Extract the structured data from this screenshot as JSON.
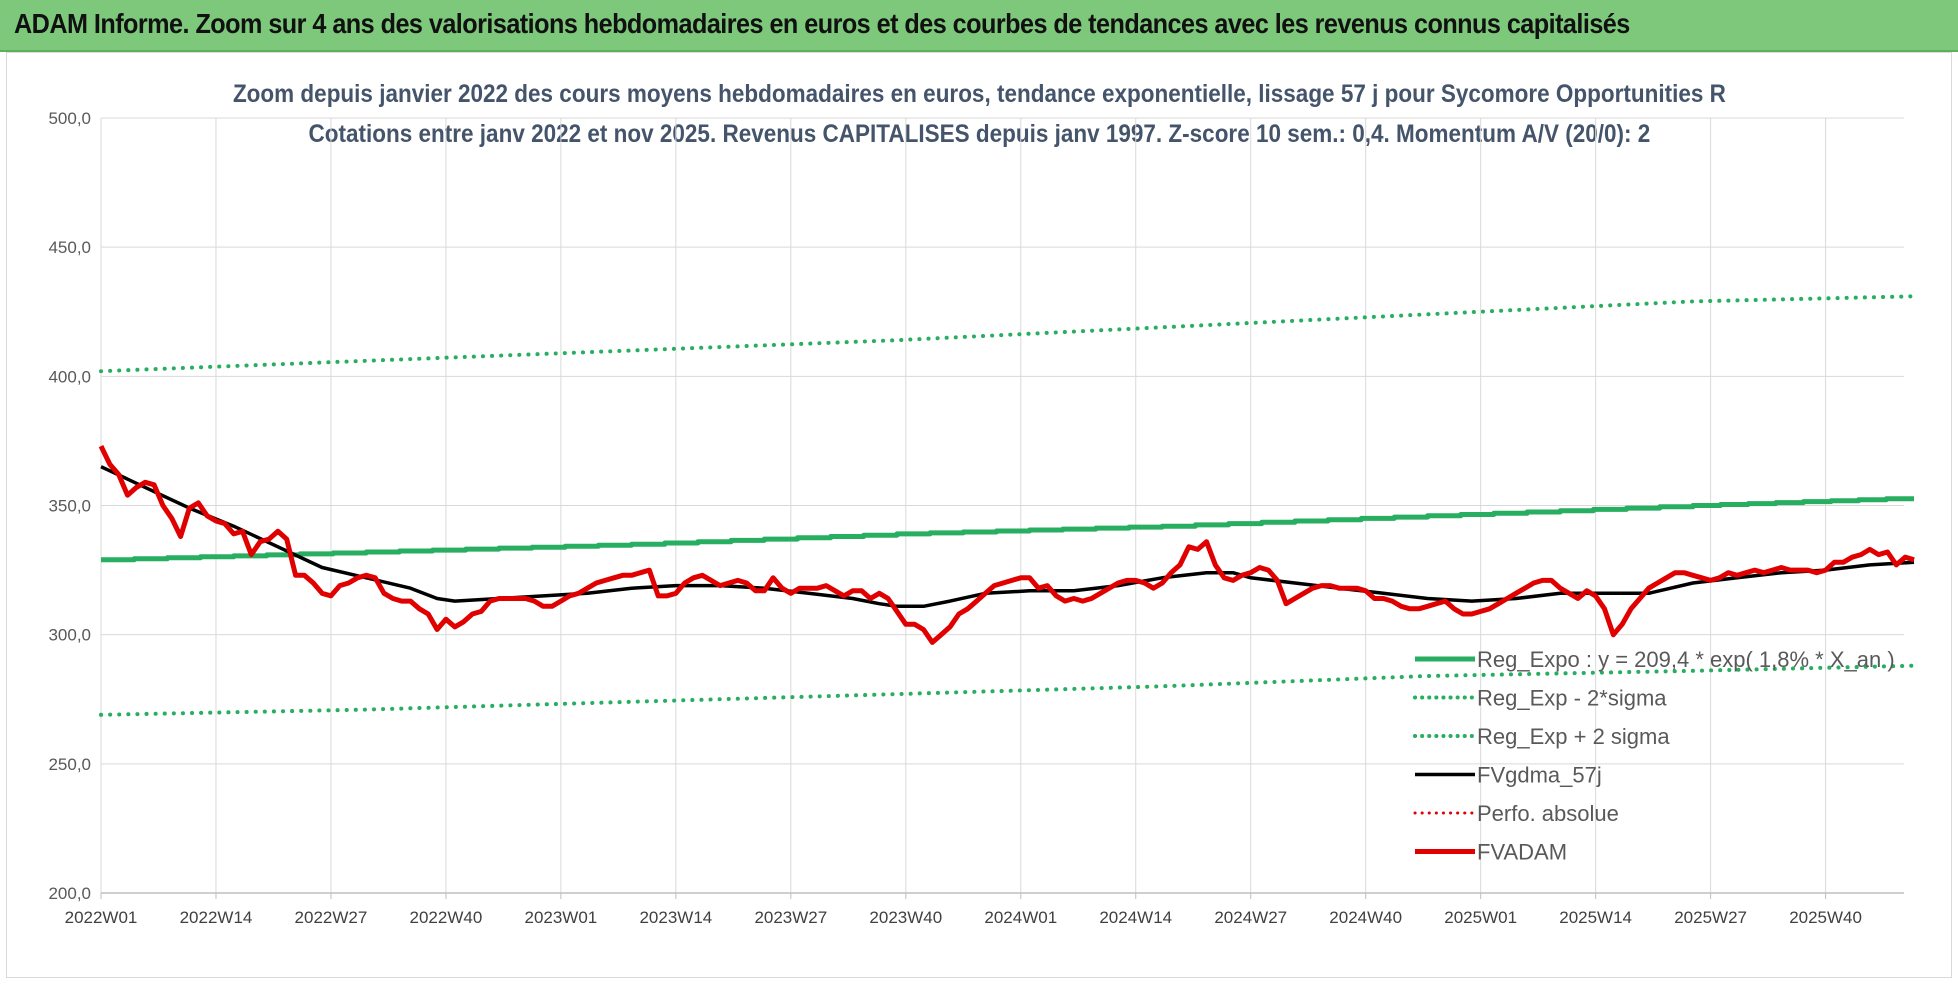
{
  "header": {
    "banner_title": "ADAM Informe. Zoom sur 4 ans des valorisations hebdomadaires en euros et des courbes de tendances avec les revenus connus capitalisés"
  },
  "chart_data": {
    "type": "line",
    "title": "Zoom depuis janvier 2022 des cours moyens hebdomadaires en euros, tendance exponentielle, lissage 57 j pour Sycomore Opportunities R",
    "subtitle": "Cotations entre janv 2022 et nov 2025. Revenus CAPITALISES depuis janv 1997. Z-score 10 sem.: 0,4. Momentum A/V (20/0): 2",
    "ylim": [
      200,
      500
    ],
    "yticks": [
      "200,0",
      "250,0",
      "300,0",
      "350,0",
      "400,0",
      "450,0",
      "500,0"
    ],
    "ytick_values": [
      200,
      250,
      300,
      350,
      400,
      450,
      500
    ],
    "xlim_weeks": [
      0,
      210
    ],
    "xticks": [
      {
        "label": "2022W01",
        "week": 0
      },
      {
        "label": "2022W14",
        "week": 13
      },
      {
        "label": "2022W27",
        "week": 26
      },
      {
        "label": "2022W40",
        "week": 39
      },
      {
        "label": "2023W01",
        "week": 52
      },
      {
        "label": "2023W14",
        "week": 65
      },
      {
        "label": "2023W27",
        "week": 78
      },
      {
        "label": "2023W40",
        "week": 91
      },
      {
        "label": "2024W01",
        "week": 104
      },
      {
        "label": "2024W14",
        "week": 117
      },
      {
        "label": "2024W27",
        "week": 130
      },
      {
        "label": "2024W40",
        "week": 143
      },
      {
        "label": "2025W01",
        "week": 156
      },
      {
        "label": "2025W14",
        "week": 169
      },
      {
        "label": "2025W27",
        "week": 182
      },
      {
        "label": "2025W40",
        "week": 195
      }
    ],
    "grid": "vertical",
    "legend_position": "bottom-right",
    "series": [
      {
        "name": "Reg_Expo : y = 209,4 * exp( 1,8% * X_an )",
        "color": "#27ae60",
        "style": "step",
        "width": 5,
        "x": [
          0,
          30,
          60,
          90,
          120,
          150,
          180,
          205
        ],
        "y": [
          329,
          332,
          335,
          339,
          342,
          346,
          350,
          353
        ]
      },
      {
        "name": "Reg_Exp - 2*sigma",
        "color": "#27ae60",
        "style": "dotted",
        "width": 4,
        "x": [
          0,
          30,
          60,
          90,
          120,
          150,
          180,
          205
        ],
        "y": [
          269,
          271,
          274,
          277,
          280,
          284,
          286,
          288
        ]
      },
      {
        "name": "Reg_Exp + 2 sigma",
        "color": "#27ae60",
        "style": "dotted",
        "width": 4,
        "x": [
          0,
          30,
          60,
          90,
          120,
          150,
          180,
          205
        ],
        "y": [
          402,
          406,
          410,
          414,
          419,
          424,
          429,
          431
        ]
      },
      {
        "name": "FVgdma_57j",
        "color": "#000000",
        "style": "solid",
        "width": 3.5,
        "x": [
          0,
          5,
          10,
          15,
          20,
          25,
          30,
          35,
          38,
          40,
          45,
          50,
          55,
          60,
          65,
          70,
          75,
          80,
          85,
          88,
          90,
          93,
          96,
          100,
          105,
          110,
          115,
          120,
          125,
          128,
          130,
          135,
          140,
          145,
          150,
          155,
          160,
          165,
          170,
          175,
          180,
          185,
          190,
          195,
          200,
          205
        ],
        "y": [
          365,
          357,
          349,
          342,
          334,
          326,
          322,
          318,
          314,
          313,
          314,
          315,
          316,
          318,
          319,
          319,
          318,
          316,
          314,
          312,
          311,
          311,
          313,
          316,
          317,
          317,
          319,
          322,
          324,
          324,
          322,
          320,
          318,
          316,
          314,
          313,
          314,
          316,
          316,
          316,
          320,
          322,
          324,
          325,
          327,
          328
        ]
      },
      {
        "name": "Perfo. absolue",
        "color": "#e00000",
        "style": "dotted",
        "width": 3,
        "x": [],
        "y": []
      },
      {
        "name": "FVADAM",
        "color": "#e00000",
        "style": "solid",
        "width": 5,
        "x": [
          0,
          1,
          2,
          3,
          4,
          5,
          6,
          7,
          8,
          9,
          10,
          11,
          12,
          13,
          14,
          15,
          16,
          17,
          18,
          19,
          20,
          21,
          22,
          23,
          24,
          25,
          26,
          27,
          28,
          29,
          30,
          31,
          32,
          33,
          34,
          35,
          36,
          37,
          38,
          39,
          40,
          41,
          42,
          43,
          44,
          45,
          46,
          47,
          48,
          49,
          50,
          51,
          52,
          53,
          54,
          55,
          56,
          57,
          58,
          59,
          60,
          61,
          62,
          63,
          64,
          65,
          66,
          67,
          68,
          69,
          70,
          71,
          72,
          73,
          74,
          75,
          76,
          77,
          78,
          79,
          80,
          81,
          82,
          83,
          84,
          85,
          86,
          87,
          88,
          89,
          90,
          91,
          92,
          93,
          94,
          95,
          96,
          97,
          98,
          99,
          100,
          101,
          102,
          103,
          104,
          105,
          106,
          107,
          108,
          109,
          110,
          111,
          112,
          113,
          114,
          115,
          116,
          117,
          118,
          119,
          120,
          121,
          122,
          123,
          124,
          125,
          126,
          127,
          128,
          129,
          130,
          131,
          132,
          133,
          134,
          135,
          136,
          137,
          138,
          139,
          140,
          141,
          142,
          143,
          144,
          145,
          146,
          147,
          148,
          149,
          150,
          151,
          152,
          153,
          154,
          155,
          156,
          157,
          158,
          159,
          160,
          161,
          162,
          163,
          164,
          165,
          166,
          167,
          168,
          169,
          170,
          171,
          172,
          173,
          174,
          175,
          176,
          177,
          178,
          179,
          180,
          181,
          182,
          183,
          184,
          185,
          186,
          187,
          188,
          189,
          190,
          191,
          192,
          193,
          194,
          195,
          196,
          197,
          198,
          199,
          200,
          201,
          202,
          203,
          204,
          205
        ],
        "y": [
          373,
          366,
          362,
          354,
          357,
          359,
          358,
          350,
          345,
          338,
          349,
          351,
          346,
          344,
          343,
          339,
          340,
          331,
          336,
          337,
          340,
          337,
          323,
          323,
          320,
          316,
          315,
          319,
          320,
          322,
          323,
          322,
          316,
          314,
          313,
          313,
          310,
          308,
          302,
          306,
          303,
          305,
          308,
          309,
          313,
          314,
          314,
          314,
          314,
          313,
          311,
          311,
          313,
          315,
          316,
          318,
          320,
          321,
          322,
          323,
          323,
          324,
          325,
          315,
          315,
          316,
          320,
          322,
          323,
          321,
          319,
          320,
          321,
          320,
          317,
          317,
          322,
          318,
          316,
          318,
          318,
          318,
          319,
          317,
          315,
          317,
          317,
          314,
          316,
          314,
          309,
          304,
          304,
          302,
          297,
          300,
          303,
          308,
          310,
          313,
          316,
          319,
          320,
          321,
          322,
          322,
          318,
          319,
          315,
          313,
          314,
          313,
          314,
          316,
          318,
          320,
          321,
          321,
          320,
          318,
          320,
          324,
          327,
          334,
          333,
          336,
          327,
          322,
          321,
          323,
          324,
          326,
          325,
          321,
          312,
          314,
          316,
          318,
          319,
          319,
          318,
          318,
          318,
          317,
          314,
          314,
          313,
          311,
          310,
          310,
          311,
          312,
          313,
          310,
          308,
          308,
          309,
          310,
          312,
          314,
          316,
          318,
          320,
          321,
          321,
          318,
          316,
          314,
          317,
          315,
          310,
          300,
          304,
          310,
          314,
          318,
          320,
          322,
          324,
          324,
          323,
          322,
          321,
          322,
          324,
          323,
          324,
          325,
          324,
          325,
          326,
          325,
          325,
          325,
          324,
          325,
          328,
          328,
          330,
          331,
          333,
          331,
          332,
          327,
          330,
          329
        ]
      }
    ]
  }
}
